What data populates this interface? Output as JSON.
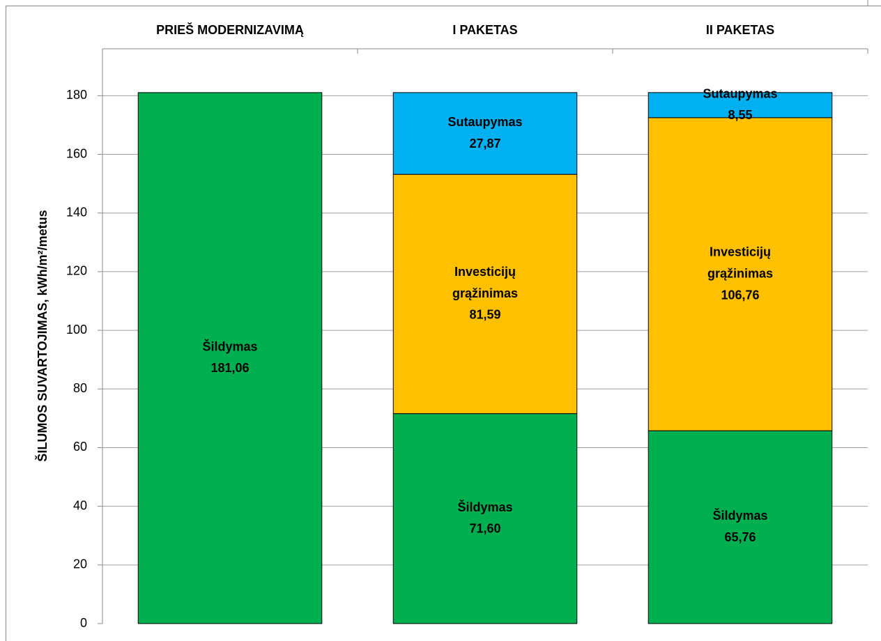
{
  "chart_data": {
    "type": "stacked_bar",
    "categories": [
      "PRIEŠ MODERNIZAVIMĄ",
      "I PAKETAS",
      "II PAKETAS"
    ],
    "y_label": "ŠILUMOS SUVARTOJIMAS, kWh/m²/metus",
    "ylim": [
      0,
      196
    ],
    "yticks": [
      0,
      20,
      40,
      60,
      80,
      100,
      120,
      140,
      160,
      180
    ],
    "grid": true,
    "series": [
      {
        "name": "Šildymas",
        "color": "#00b050",
        "values": [
          181.06,
          71.6,
          65.76
        ],
        "value_labels": [
          "181,06",
          "71,60",
          "65,76"
        ]
      },
      {
        "name": "Investicijų grąžinimas",
        "color": "#ffc000",
        "values": [
          null,
          81.59,
          106.76
        ],
        "value_labels": [
          null,
          "81,59",
          "106,76"
        ]
      },
      {
        "name": "Sutaupymas",
        "color": "#00b0f0",
        "values": [
          null,
          27.87,
          8.55
        ],
        "value_labels": [
          null,
          "27,87",
          "8,55"
        ]
      }
    ]
  }
}
